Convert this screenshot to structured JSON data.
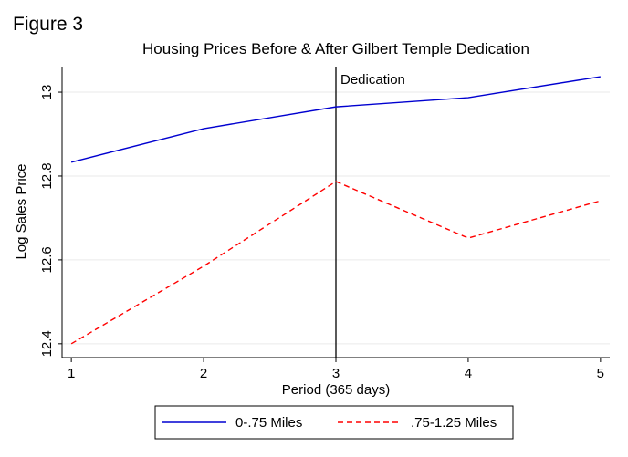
{
  "figure_label": "Figure 3",
  "chart_data": {
    "type": "line",
    "title": "Housing Prices Before & After Gilbert Temple Dedication",
    "x_label": "Period (365 days)",
    "y_label": "Log Sales Price",
    "x": [
      1,
      2,
      3,
      4,
      5
    ],
    "series": [
      {
        "name": "0-.75 Miles",
        "color": "#0000d0",
        "dash": "solid",
        "values": [
          12.833,
          12.913,
          12.965,
          12.987,
          13.037
        ]
      },
      {
        "name": ".75-1.25 Miles",
        "color": "#ff0000",
        "dash": "dashed",
        "values": [
          12.4,
          12.585,
          12.787,
          12.652,
          12.741
        ]
      }
    ],
    "xlim": [
      0.93,
      5.07
    ],
    "xticks": [
      1,
      2,
      3,
      4,
      5
    ],
    "ylim": [
      12.367,
      13.061
    ],
    "yticks": [
      12.4,
      12.6,
      12.8,
      13
    ],
    "grid": true,
    "legend": "bottom",
    "annotations": [
      {
        "x": 3,
        "label": "Dedication"
      }
    ]
  }
}
